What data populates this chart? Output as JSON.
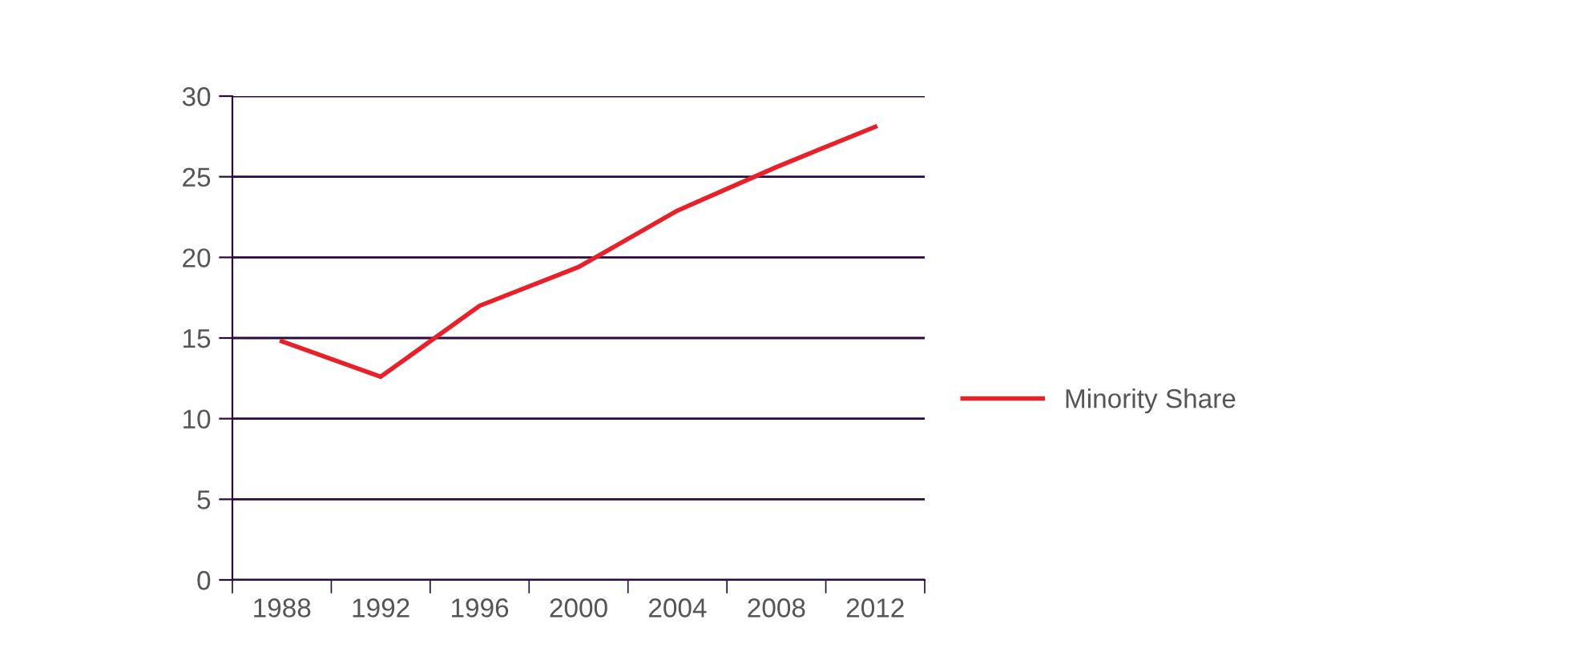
{
  "chart_data": {
    "type": "line",
    "categories": [
      "1988",
      "1992",
      "1996",
      "2000",
      "2004",
      "2008",
      "2012"
    ],
    "series": [
      {
        "name": "Minority Share",
        "color": "#e8202a",
        "values": [
          14.8,
          12.6,
          17.0,
          19.4,
          22.9,
          25.6,
          28.1
        ]
      }
    ],
    "ylim": [
      0,
      30
    ],
    "yticks": [
      0,
      5,
      10,
      15,
      20,
      25,
      30
    ],
    "grid": "y",
    "legend": "right",
    "marker": "none",
    "line_style": "solid"
  }
}
